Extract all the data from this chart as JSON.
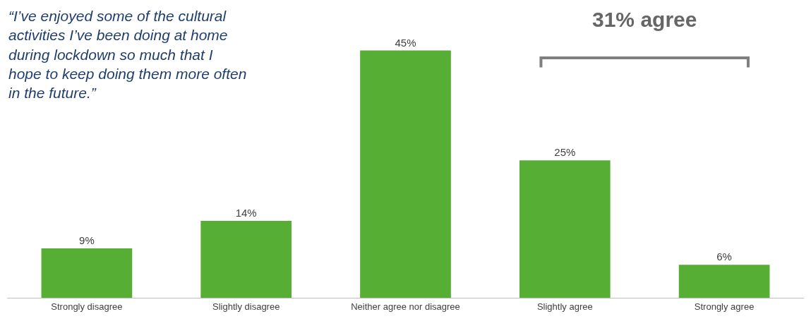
{
  "chart_data": {
    "type": "bar",
    "categories": [
      "Strongly disagree",
      "Slightly disagree",
      "Neither agree nor disagree",
      "Slightly agree",
      "Strongly agree"
    ],
    "values": [
      9,
      14,
      45,
      25,
      6
    ],
    "value_labels": [
      "9%",
      "14%",
      "45%",
      "25%",
      "6%"
    ],
    "color": "#56ae34",
    "annotations": [
      "“I’ve enjoyed some of the cultural activities I’ve been doing at home during lockdown so much that I hope to keep doing them more often in the future.”",
      "31% agree"
    ]
  }
}
